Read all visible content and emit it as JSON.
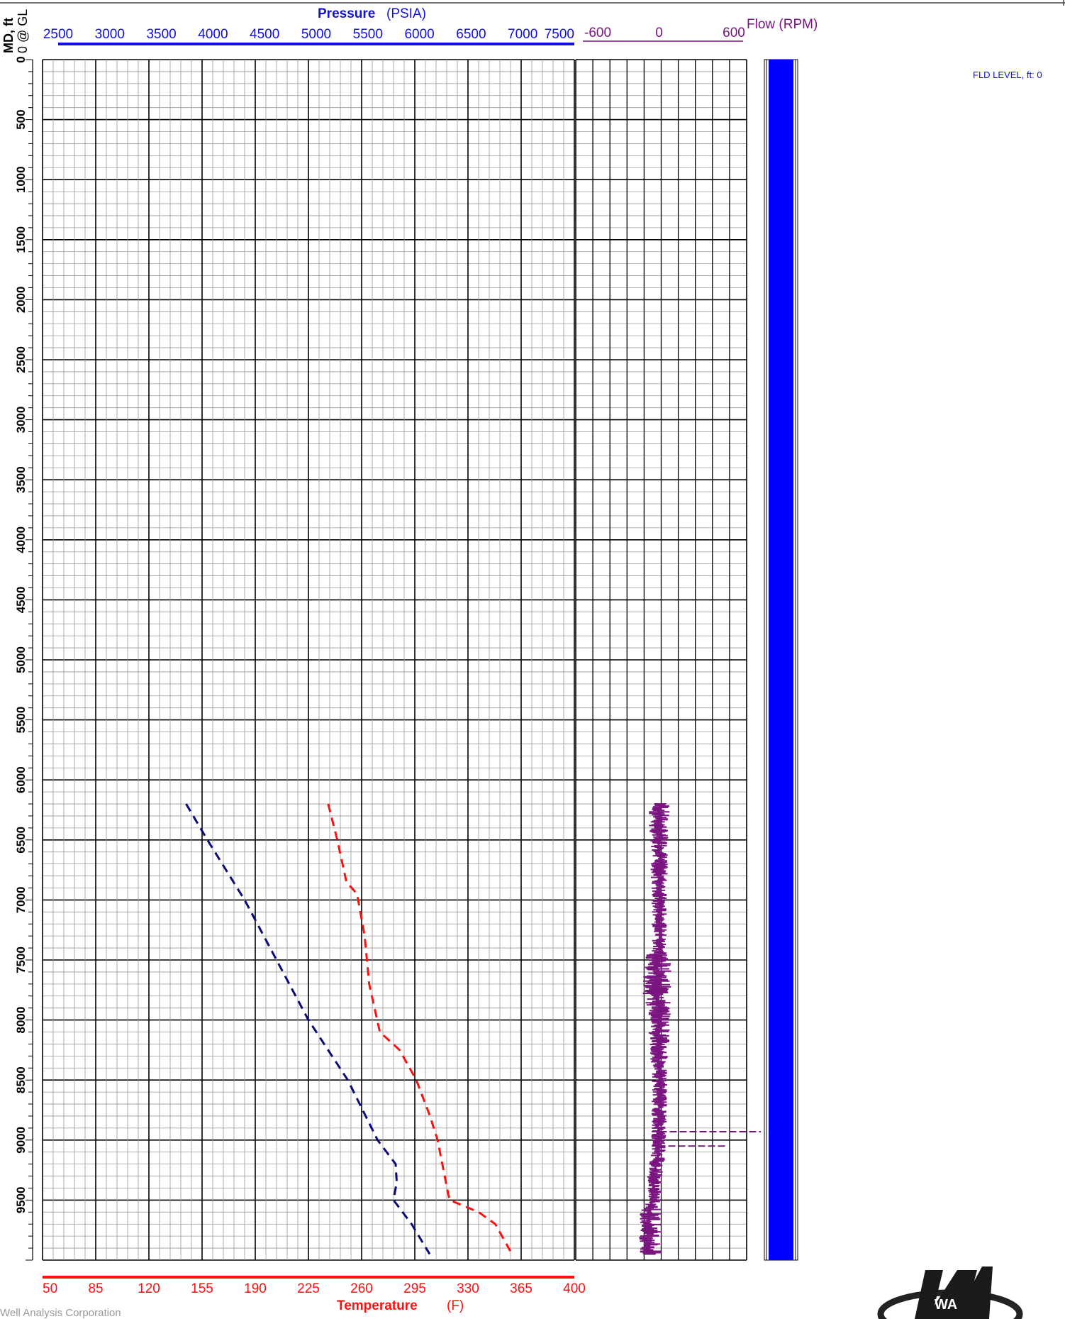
{
  "header": {
    "depth_title": "MD, ft",
    "depth_reference": "0 @ GL",
    "pressure_title": "Pressure",
    "pressure_unit": "(PSIA)",
    "flow_title": "Flow (RPM)",
    "temperature_title": "Temperature",
    "temperature_unit": "(F)",
    "fluid_level_label": "FLD LEVEL, ft: 0",
    "footer_company": "Well Analysis Corporation",
    "logo_text": "WA"
  },
  "colors": {
    "pressure": "#1010e0",
    "temperature": "#ff1010",
    "flow": "#7a1580",
    "pressure_curve": "#0a0a7a",
    "fluid_column": "#0000ff",
    "grid_major": "#000000",
    "grid_minor": "#999999"
  },
  "chart_data": {
    "type": "line",
    "y_axis": {
      "label": "MD, ft",
      "range": [
        0,
        10000
      ],
      "inverted": true,
      "tick_labels": [
        "0",
        "500",
        "1000",
        "1500",
        "2000",
        "2500",
        "3000",
        "3500",
        "4000",
        "4500",
        "5000",
        "5500",
        "6000",
        "6500",
        "7000",
        "7500",
        "8000",
        "8500",
        "9000",
        "9500"
      ]
    },
    "pressure_axis": {
      "label": "Pressure (PSIA)",
      "range": [
        2500,
        7500
      ],
      "tick_labels": [
        "2500",
        "3000",
        "3500",
        "4000",
        "4500",
        "5000",
        "5500",
        "6000",
        "6500",
        "7000",
        "7500"
      ]
    },
    "temperature_axis": {
      "label": "Temperature (F)",
      "range": [
        50,
        400
      ],
      "tick_labels": [
        "50",
        "85",
        "120",
        "155",
        "190",
        "225",
        "260",
        "295",
        "330",
        "365",
        "400"
      ]
    },
    "flow_axis": {
      "label": "Flow (RPM)",
      "range": [
        -600,
        600
      ],
      "tick_labels": [
        "-600",
        "0",
        "600"
      ]
    },
    "series": [
      {
        "name": "Pressure",
        "axis": "pressure",
        "style": "dashed",
        "points": [
          [
            6200,
            3850
          ],
          [
            6500,
            4050
          ],
          [
            7000,
            4400
          ],
          [
            7500,
            4700
          ],
          [
            8000,
            5000
          ],
          [
            8500,
            5370
          ],
          [
            9000,
            5650
          ],
          [
            9200,
            5820
          ],
          [
            9350,
            5830
          ],
          [
            9500,
            5800
          ],
          [
            9700,
            5970
          ],
          [
            9950,
            6140
          ]
        ]
      },
      {
        "name": "Temperature",
        "axis": "temperature",
        "style": "dashed",
        "points": [
          [
            6200,
            238
          ],
          [
            6500,
            244
          ],
          [
            6850,
            250
          ],
          [
            6950,
            257
          ],
          [
            7300,
            262
          ],
          [
            7700,
            265
          ],
          [
            8100,
            272
          ],
          [
            8250,
            285
          ],
          [
            8500,
            296
          ],
          [
            8800,
            305
          ],
          [
            9000,
            310
          ],
          [
            9450,
            317
          ],
          [
            9500,
            318
          ],
          [
            9600,
            337
          ],
          [
            9700,
            348
          ],
          [
            9950,
            359
          ]
        ]
      },
      {
        "name": "Flow",
        "axis": "flow",
        "style": "noisy",
        "profile": [
          [
            6200,
            -10,
            40,
            60
          ],
          [
            6350,
            -20,
            30,
            50
          ],
          [
            6600,
            -10,
            30,
            40
          ],
          [
            7000,
            -10,
            20,
            30
          ],
          [
            7400,
            -10,
            20,
            30
          ],
          [
            7500,
            -30,
            60,
            80
          ],
          [
            7850,
            -30,
            60,
            80
          ],
          [
            7900,
            -10,
            40,
            60
          ],
          [
            8200,
            -20,
            30,
            60
          ],
          [
            8400,
            -10,
            20,
            30
          ],
          [
            8550,
            -5,
            20,
            30
          ],
          [
            8900,
            -20,
            10,
            40
          ],
          [
            9100,
            -20,
            10,
            40
          ],
          [
            9300,
            -50,
            10,
            40
          ],
          [
            9500,
            -70,
            -20,
            50
          ],
          [
            9600,
            -90,
            20,
            80
          ],
          [
            9950,
            -100,
            20,
            80
          ]
        ]
      }
    ],
    "fluid_level_ft": 0,
    "grid": true
  }
}
